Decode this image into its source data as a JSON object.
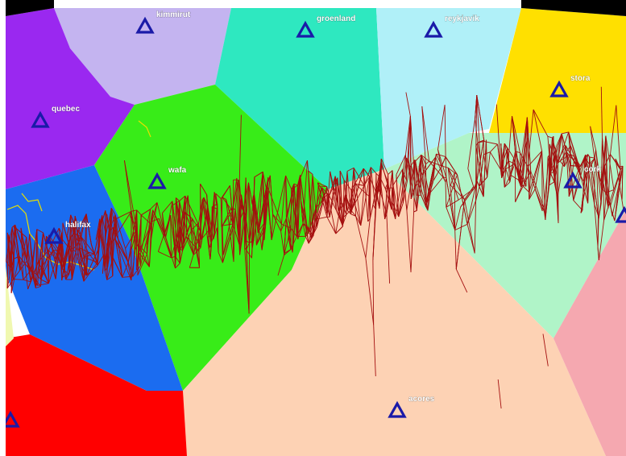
{
  "map": {
    "background": "#ffffff",
    "route_color": "#a40f0f",
    "coastline_color": "#e8e000",
    "station_marker_color": "#1a1aa8",
    "regions": [
      {
        "name": "kimmirut-region",
        "color": "#c4b4f0"
      },
      {
        "name": "groenland-region",
        "color": "#2ee8c0"
      },
      {
        "name": "reykjavik-region",
        "color": "#b0f0f8"
      },
      {
        "name": "stora-region",
        "color": "#ffe000"
      },
      {
        "name": "quebec-region",
        "color": "#9a28f0"
      },
      {
        "name": "wafa-region",
        "color": "#38ec18"
      },
      {
        "name": "halifax-region",
        "color": "#1b6cf0"
      },
      {
        "name": "cork-region",
        "color": "#b0f4c8"
      },
      {
        "name": "acores-region",
        "color": "#fdd2b4"
      },
      {
        "name": "south-west-region",
        "color": "#ff0000"
      },
      {
        "name": "east-region",
        "color": "#f5a8b0"
      }
    ],
    "stations": [
      {
        "id": "kimmirut",
        "label": "kimmirut"
      },
      {
        "id": "groenland",
        "label": "groenland"
      },
      {
        "id": "reykjavik",
        "label": "reykjavik"
      },
      {
        "id": "stora",
        "label": "stora"
      },
      {
        "id": "quebec",
        "label": "quebec"
      },
      {
        "id": "wafa",
        "label": "wafa"
      },
      {
        "id": "cork",
        "label": "cork"
      },
      {
        "id": "halifax",
        "label": "halifax"
      },
      {
        "id": "acores",
        "label": "acores"
      },
      {
        "id": "south-west",
        "label": ""
      },
      {
        "id": "east-edge",
        "label": ""
      }
    ]
  }
}
